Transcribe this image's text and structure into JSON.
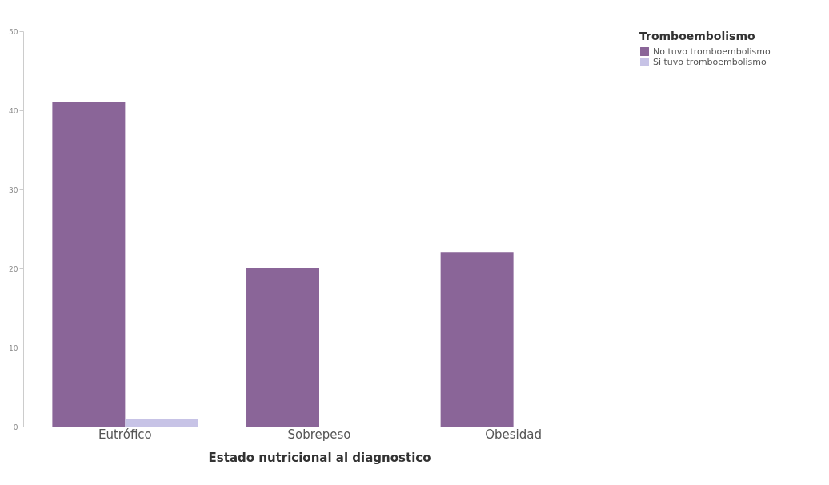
{
  "chart_data": {
    "type": "bar",
    "xlabel": "Estado nutricional al diagnostico",
    "legend_title": "Tromboembolismo",
    "categories": [
      "Eutrófico",
      "Sobrepeso",
      "Obesidad"
    ],
    "series": [
      {
        "name": "No tuvo tromboembolismo",
        "color": "#8a6598",
        "values": [
          41,
          20,
          22
        ]
      },
      {
        "name": "Si tuvo tromboembolismo",
        "color": "#c7c3e6",
        "values": [
          1,
          0,
          0
        ]
      }
    ],
    "ylim": [
      0,
      50
    ],
    "yticks": [
      0,
      10,
      20,
      30,
      40,
      50
    ],
    "legend": "top right",
    "grid": false
  }
}
